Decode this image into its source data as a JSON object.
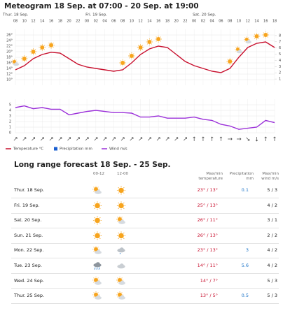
{
  "chart_data": [
    {
      "type": "line",
      "title": "Meteogram 18 Sep. at 07:00 - 20 Sep. at 19:00",
      "day_labels": [
        "Thur. 18 Sep.",
        "Fri. 19 Sep.",
        "Sat. 20 Sep."
      ],
      "categories": [
        "08",
        "10",
        "12",
        "14",
        "16",
        "18",
        "20",
        "22",
        "00",
        "02",
        "04",
        "06",
        "08",
        "10",
        "12",
        "14",
        "16",
        "18",
        "20",
        "22",
        "00",
        "02",
        "04",
        "06",
        "08",
        "10",
        "12",
        "14",
        "16",
        "18"
      ],
      "series": [
        {
          "name": "Temperature °C",
          "color": "#c8102e",
          "values": [
            13.5,
            15,
            17.5,
            19,
            19.8,
            19.5,
            17.5,
            15.5,
            14.5,
            14,
            13.5,
            13,
            13.5,
            16,
            19,
            21,
            22,
            21.5,
            19,
            16.5,
            15,
            14,
            13,
            12.5,
            14,
            18,
            21.5,
            23,
            23.5,
            21.5
          ]
        },
        {
          "name": "Precipitation mm",
          "color": "#1a5fd0",
          "axis": "y2",
          "values": [
            0,
            0,
            0,
            0,
            0,
            0,
            0,
            0,
            0,
            0,
            0,
            0,
            0,
            0,
            0,
            0,
            0,
            0,
            0,
            0,
            0,
            0,
            0,
            0,
            0,
            0,
            0,
            0,
            0,
            0
          ]
        }
      ],
      "ylim": [
        8,
        28
      ],
      "yticks": [
        {
          "value": 10,
          "label": "10°"
        },
        {
          "value": 12,
          "label": "12°"
        },
        {
          "value": 14,
          "label": "14°"
        },
        {
          "value": 16,
          "label": "16°"
        },
        {
          "value": 18,
          "label": "18°"
        },
        {
          "value": 20,
          "label": "20°"
        },
        {
          "value": 22,
          "label": "22°"
        },
        {
          "value": 24,
          "label": "24°"
        },
        {
          "value": 26,
          "label": "26°"
        }
      ],
      "y2lim": [
        0,
        9
      ],
      "y2ticks": [
        1,
        2,
        3,
        4,
        5,
        6,
        7,
        8
      ],
      "grid": true
    },
    {
      "type": "line",
      "series": [
        {
          "name": "Wind m/s",
          "color": "#9b30d9",
          "values": [
            4.5,
            4.8,
            4.3,
            4.5,
            4.2,
            4.2,
            3.2,
            3.5,
            3.8,
            4,
            3.8,
            3.6,
            3.6,
            3.5,
            2.8,
            2.8,
            3,
            2.6,
            2.6,
            2.6,
            2.8,
            2.4,
            2.2,
            1.5,
            1.2,
            0.6,
            0.8,
            1,
            2.2,
            1.8
          ]
        }
      ],
      "ylim": [
        0,
        6
      ],
      "yticks": [
        0,
        1,
        2,
        3,
        4,
        5
      ],
      "grid": true
    }
  ],
  "forecast": {
    "title": "Long range forecast 18 Sep. - 25 Sep.",
    "columns": [
      "00-12",
      "12-00",
      "Max/min temperature",
      "Precipitation mm",
      "Max/min wind m/s"
    ],
    "rows": [
      [
        "Thur. 18 Sep.",
        "23° / 13°",
        "0.1",
        "5 / 3"
      ],
      [
        "Fri. 19 Sep.",
        "25° / 13°",
        null,
        "4 / 2"
      ],
      [
        "Sat. 20 Sep.",
        "26° / 11°",
        null,
        "3 / 1"
      ],
      [
        "Sun. 21 Sep.",
        "26° / 13°",
        null,
        "2 / 2"
      ],
      [
        "Mon. 22 Sep.",
        "23° / 13°",
        "3",
        "4 / 2"
      ],
      [
        "Tue. 23 Sep.",
        "14° / 11°",
        "5.6",
        "4 / 2"
      ],
      [
        "Wed. 24 Sep.",
        "14° / 7°",
        null,
        "5 / 3"
      ],
      [
        "Thur. 25 Sep.",
        "13° / 5°",
        "0.5",
        "5 / 3"
      ]
    ]
  }
}
